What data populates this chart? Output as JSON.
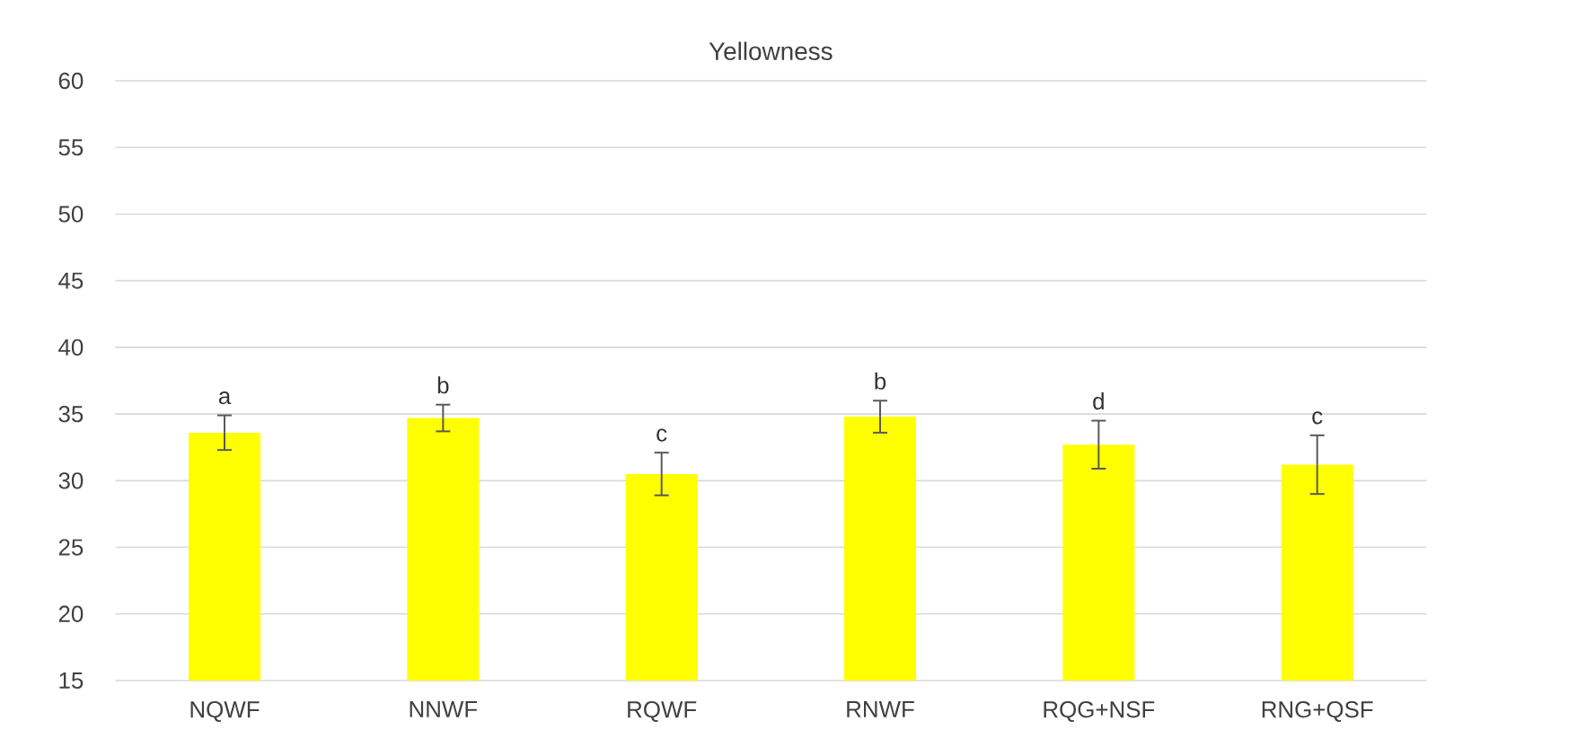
{
  "chart_data": {
    "type": "bar",
    "title": "Yellowness",
    "categories": [
      "NQWF",
      "NNWF",
      "RQWF",
      "RNWF",
      "RQG+NSF",
      "RNG+QSF"
    ],
    "values": [
      33.6,
      34.7,
      30.5,
      34.8,
      32.7,
      31.2
    ],
    "errors": [
      1.3,
      1.0,
      1.6,
      1.2,
      1.8,
      2.2
    ],
    "color": "#ffff00",
    "ylim": [
      15,
      60
    ],
    "yticks": [
      15,
      20,
      25,
      30,
      35,
      40,
      45,
      50,
      55,
      60
    ],
    "grid": "y",
    "annotations": [
      "a",
      "b",
      "c",
      "b",
      "d",
      "c"
    ]
  }
}
